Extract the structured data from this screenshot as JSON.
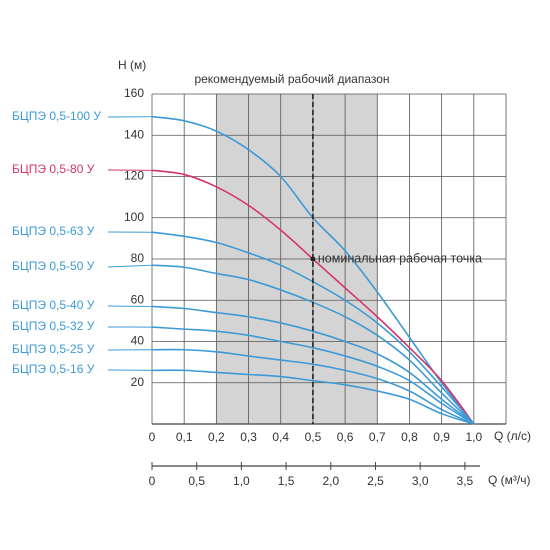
{
  "chart_data": {
    "type": "line",
    "title": "рекомендуемый рабочий диапазон",
    "annotation": "номинальная рабочая точка",
    "y_label": "H (м)",
    "x_label": "Q (л/с)",
    "x2_label": "Q (м³/ч)",
    "x": [
      0,
      0.1,
      0.2,
      0.3,
      0.4,
      0.5,
      0.6,
      0.7,
      0.8,
      0.9,
      1.0
    ],
    "xlim": [
      0,
      1.1
    ],
    "xticks": [
      0,
      {
        "value": 0.1,
        "label": "0,1"
      },
      {
        "value": 0.2,
        "label": "0,2"
      },
      {
        "value": 0.3,
        "label": "0,3"
      },
      {
        "value": 0.4,
        "label": "0,4"
      },
      {
        "value": 0.5,
        "label": "0,5"
      },
      {
        "value": 0.6,
        "label": "0,6"
      },
      {
        "value": 0.7,
        "label": "0,7"
      },
      {
        "value": 0.8,
        "label": "0,8"
      },
      {
        "value": 0.9,
        "label": "0,9"
      },
      {
        "value": 1.0,
        "label": "1,0"
      }
    ],
    "x2lim": [
      0,
      3.96
    ],
    "x2ticks": [
      0,
      {
        "value": 0.5,
        "label": "0,5"
      },
      {
        "value": 1.0,
        "label": "1,0"
      },
      {
        "value": 1.5,
        "label": "1,5"
      },
      {
        "value": 2.0,
        "label": "2,0"
      },
      {
        "value": 2.5,
        "label": "2,5"
      },
      {
        "value": 3.0,
        "label": "3,0"
      },
      {
        "value": 3.5,
        "label": "3,5"
      }
    ],
    "ylim": [
      0,
      160
    ],
    "yticks": [
      20,
      40,
      60,
      80,
      100,
      120,
      140,
      160
    ],
    "grid": true,
    "range": [
      0.2,
      0.7
    ],
    "range_color": "#d4d4d4",
    "nominal_point": [
      0.5,
      80
    ],
    "series": [
      {
        "name": "БЦПЭ 0,5-100 У",
        "color": "#3d9ad6",
        "values": [
          149,
          147,
          142,
          133,
          120,
          100,
          84,
          64,
          42,
          20,
          0
        ]
      },
      {
        "name": "БЦПЭ 0,5-80 У",
        "color": "#d6336c",
        "values": [
          123,
          121,
          115,
          106,
          94,
          80,
          66,
          52,
          37,
          21,
          0
        ]
      },
      {
        "name": "БЦПЭ 0,5-63 У",
        "color": "#3d9ad6",
        "values": [
          93,
          91,
          88,
          83,
          77,
          69,
          60,
          49,
          35,
          18,
          0
        ]
      },
      {
        "name": "БЦПЭ 0,5-50 У",
        "color": "#3d9ad6",
        "values": [
          77,
          76,
          73,
          70,
          65,
          59,
          52,
          43,
          31,
          15,
          0
        ]
      },
      {
        "name": "БЦПЭ 0,5-40 У",
        "color": "#3d9ad6",
        "values": [
          57,
          56,
          54,
          52,
          49,
          45,
          40,
          34,
          25,
          12,
          0
        ]
      },
      {
        "name": "БЦПЭ 0,5-32 У",
        "color": "#3d9ad6",
        "values": [
          47,
          46,
          45,
          43,
          40,
          37,
          33,
          28,
          21,
          10,
          0
        ]
      },
      {
        "name": "БЦПЭ 0,5-25 У",
        "color": "#3d9ad6",
        "values": [
          36,
          36,
          35,
          33,
          31,
          29,
          26,
          22,
          16,
          7,
          0
        ]
      },
      {
        "name": "БЦПЭ 0,5-16 У",
        "color": "#3d9ad6",
        "values": [
          26,
          26,
          25,
          24,
          23,
          21,
          19,
          16,
          12,
          5,
          0
        ]
      }
    ]
  }
}
